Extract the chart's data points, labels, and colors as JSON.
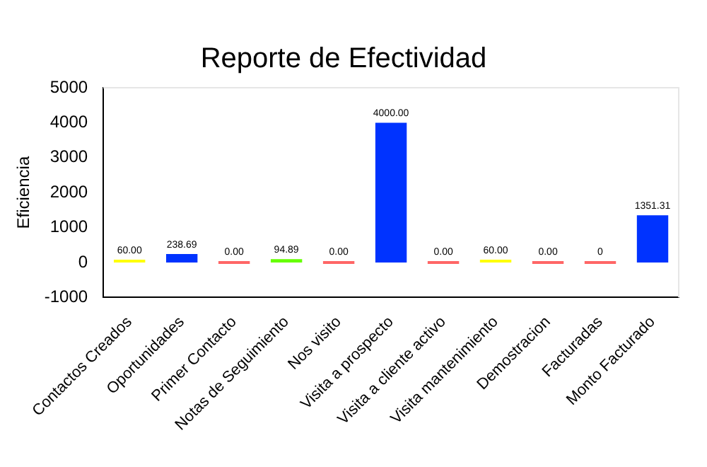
{
  "chart_data": {
    "type": "bar",
    "title": "Reporte de Efectividad",
    "ylabel": "Eficiencia",
    "categories": [
      "Contactos Creados",
      "Oportunidades",
      "Primer Contacto",
      "Notas de Seguimiento",
      "Nos visito",
      "Visita a prospecto",
      "Visita a cliente activo",
      "Visita mantenimiento",
      "Demostracion",
      "Facturadas",
      "Monto Facturado"
    ],
    "values": [
      60,
      238.69,
      0,
      94.89,
      0,
      4000,
      0,
      60,
      0,
      0,
      1351.31
    ],
    "value_labels": [
      "60.00",
      "238.69",
      "0.00",
      "94.89",
      "0.00",
      "4000.00",
      "0.00",
      "60.00",
      "0.00",
      "0",
      "1351.31"
    ],
    "colors": [
      "#ffff00",
      "#0033ff",
      "#ff6666",
      "#66ff00",
      "#ff6666",
      "#0033ff",
      "#ff6666",
      "#ffff00",
      "#ff6666",
      "#ff6666",
      "#0033ff"
    ],
    "ylim": [
      -1000,
      5000
    ],
    "yticks": [
      -1000,
      0,
      1000,
      2000,
      3000,
      4000,
      5000
    ],
    "grid": false,
    "legend": false
  }
}
